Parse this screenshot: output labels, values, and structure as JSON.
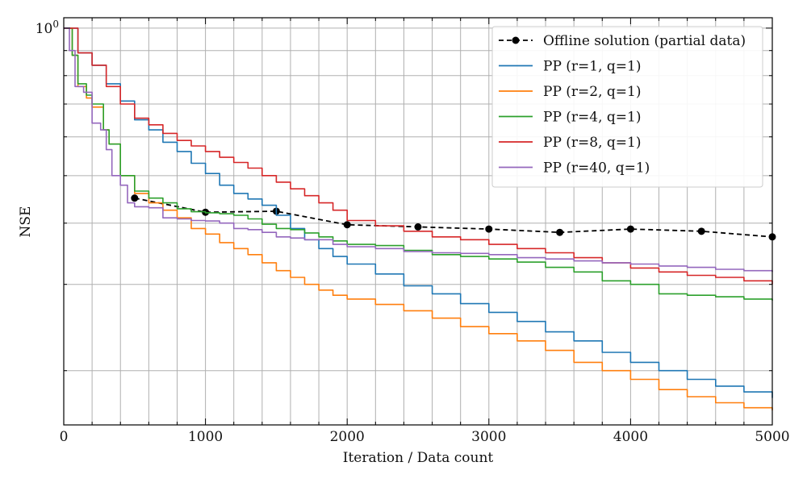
{
  "chart_data": {
    "type": "line",
    "title": "",
    "xlabel": "Iteration / Data count",
    "ylabel": "NSE",
    "xlim": [
      0,
      5000
    ],
    "ylim": [
      0.155,
      1.05
    ],
    "yscale": "log",
    "x_ticks": [
      0,
      1000,
      2000,
      3000,
      4000,
      5000
    ],
    "x_tick_labels": [
      "0",
      "1000",
      "2000",
      "3000",
      "4000",
      "5000"
    ],
    "y_tick_label": {
      "base": "10",
      "exp": "0",
      "value": 1.0
    },
    "grid": true,
    "legend": "top-right",
    "series": [
      {
        "name": "Offline solution (partial data)",
        "color": "#000000",
        "style": "dashed",
        "marker": "circle",
        "x": [
          500,
          1000,
          1500,
          2000,
          2500,
          3000,
          3500,
          4000,
          4500,
          5000
        ],
        "y": [
          0.45,
          0.421,
          0.423,
          0.397,
          0.393,
          0.389,
          0.383,
          0.389,
          0.385,
          0.375
        ]
      },
      {
        "name": "PP (r=1, q=1)",
        "color": "#1f77b4",
        "style": "solid",
        "x": [
          0,
          100,
          200,
          300,
          400,
          500,
          600,
          700,
          800,
          900,
          1000,
          1100,
          1200,
          1300,
          1400,
          1500,
          1600,
          1700,
          1800,
          1900,
          2000,
          2200,
          2400,
          2600,
          2800,
          3000,
          3200,
          3400,
          3600,
          3800,
          4000,
          4200,
          4400,
          4600,
          4800,
          5000
        ],
        "y": [
          1.0,
          0.89,
          0.84,
          0.77,
          0.71,
          0.65,
          0.62,
          0.585,
          0.56,
          0.53,
          0.505,
          0.478,
          0.46,
          0.448,
          0.435,
          0.415,
          0.39,
          0.37,
          0.355,
          0.342,
          0.33,
          0.315,
          0.298,
          0.287,
          0.274,
          0.263,
          0.252,
          0.24,
          0.23,
          0.218,
          0.208,
          0.2,
          0.192,
          0.186,
          0.181,
          0.176
        ]
      },
      {
        "name": "PP (r=2, q=1)",
        "color": "#ff7f0e",
        "style": "solid",
        "x": [
          0,
          60,
          100,
          160,
          200,
          280,
          320,
          400,
          500,
          600,
          700,
          800,
          900,
          1000,
          1100,
          1200,
          1300,
          1400,
          1500,
          1600,
          1700,
          1800,
          1900,
          2000,
          2200,
          2400,
          2600,
          2800,
          3000,
          3200,
          3400,
          3600,
          3800,
          4000,
          4200,
          4400,
          4600,
          4800,
          5000
        ],
        "y": [
          1.0,
          0.88,
          0.76,
          0.72,
          0.69,
          0.62,
          0.58,
          0.5,
          0.46,
          0.44,
          0.425,
          0.41,
          0.39,
          0.38,
          0.365,
          0.355,
          0.345,
          0.332,
          0.32,
          0.31,
          0.3,
          0.292,
          0.285,
          0.28,
          0.273,
          0.265,
          0.256,
          0.246,
          0.238,
          0.23,
          0.22,
          0.208,
          0.2,
          0.192,
          0.183,
          0.177,
          0.172,
          0.168,
          0.166
        ]
      },
      {
        "name": "PP (r=4, q=1)",
        "color": "#2ca02c",
        "style": "solid",
        "x": [
          0,
          60,
          100,
          160,
          200,
          280,
          320,
          400,
          500,
          600,
          700,
          800,
          900,
          1000,
          1100,
          1200,
          1300,
          1400,
          1500,
          1600,
          1700,
          1800,
          1900,
          2000,
          2200,
          2400,
          2600,
          2800,
          3000,
          3200,
          3400,
          3600,
          3800,
          4000,
          4200,
          4400,
          4600,
          4800,
          5000
        ],
        "y": [
          1.0,
          0.88,
          0.77,
          0.73,
          0.7,
          0.62,
          0.58,
          0.5,
          0.465,
          0.45,
          0.44,
          0.428,
          0.422,
          0.42,
          0.418,
          0.415,
          0.408,
          0.398,
          0.39,
          0.388,
          0.382,
          0.375,
          0.368,
          0.362,
          0.36,
          0.352,
          0.345,
          0.342,
          0.338,
          0.333,
          0.325,
          0.318,
          0.305,
          0.3,
          0.287,
          0.285,
          0.283,
          0.28,
          0.278
        ]
      },
      {
        "name": "PP (r=8, q=1)",
        "color": "#d62728",
        "style": "solid",
        "x": [
          0,
          100,
          200,
          300,
          400,
          500,
          600,
          700,
          800,
          900,
          1000,
          1100,
          1200,
          1300,
          1400,
          1500,
          1600,
          1700,
          1800,
          1900,
          2000,
          2200,
          2400,
          2600,
          2800,
          3000,
          3200,
          3400,
          3600,
          3800,
          4000,
          4200,
          4400,
          4600,
          4800,
          5000
        ],
        "y": [
          1.0,
          0.89,
          0.84,
          0.76,
          0.7,
          0.655,
          0.635,
          0.61,
          0.59,
          0.575,
          0.56,
          0.545,
          0.532,
          0.518,
          0.5,
          0.485,
          0.47,
          0.455,
          0.44,
          0.425,
          0.405,
          0.395,
          0.385,
          0.375,
          0.37,
          0.362,
          0.355,
          0.348,
          0.34,
          0.332,
          0.324,
          0.318,
          0.313,
          0.31,
          0.305,
          0.3
        ]
      },
      {
        "name": "PP (r=40, q=1)",
        "color": "#9467bd",
        "style": "solid",
        "x": [
          0,
          40,
          80,
          140,
          200,
          260,
          300,
          340,
          400,
          450,
          500,
          600,
          700,
          800,
          900,
          1000,
          1100,
          1200,
          1300,
          1400,
          1500,
          1600,
          1700,
          1800,
          1900,
          2000,
          2200,
          2400,
          2600,
          2800,
          3000,
          3200,
          3400,
          3600,
          3800,
          4000,
          4200,
          4400,
          4600,
          4800,
          5000
        ],
        "y": [
          1.0,
          0.9,
          0.76,
          0.74,
          0.64,
          0.62,
          0.565,
          0.5,
          0.478,
          0.44,
          0.432,
          0.43,
          0.41,
          0.408,
          0.405,
          0.404,
          0.4,
          0.39,
          0.388,
          0.383,
          0.375,
          0.373,
          0.37,
          0.37,
          0.362,
          0.358,
          0.355,
          0.35,
          0.348,
          0.347,
          0.345,
          0.34,
          0.338,
          0.335,
          0.332,
          0.33,
          0.327,
          0.325,
          0.322,
          0.32,
          0.318
        ]
      }
    ]
  }
}
